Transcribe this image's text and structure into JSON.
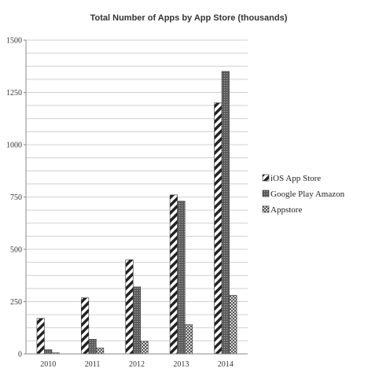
{
  "chart_data": {
    "type": "bar",
    "title": "Total Number of Apps by App Store (thousands)",
    "xlabel": "",
    "ylabel": "",
    "categories": [
      "2010",
      "2011",
      "2012",
      "2013",
      "2014"
    ],
    "ylim": [
      0,
      1500
    ],
    "yticks": [
      0,
      250,
      500,
      750,
      1000,
      1250,
      1500
    ],
    "grid": true,
    "legend_position": "right",
    "series": [
      {
        "name": "iOS App Store",
        "values": [
          170,
          268,
          450,
          760,
          1200
        ],
        "pattern": "diagonal-stripes"
      },
      {
        "name": "Google Play Amazon",
        "values": [
          20,
          70,
          320,
          730,
          1350
        ],
        "pattern": "dark-dots"
      },
      {
        "name": "Appstore",
        "values": [
          5,
          28,
          60,
          140,
          280
        ],
        "pattern": "checker"
      }
    ]
  }
}
